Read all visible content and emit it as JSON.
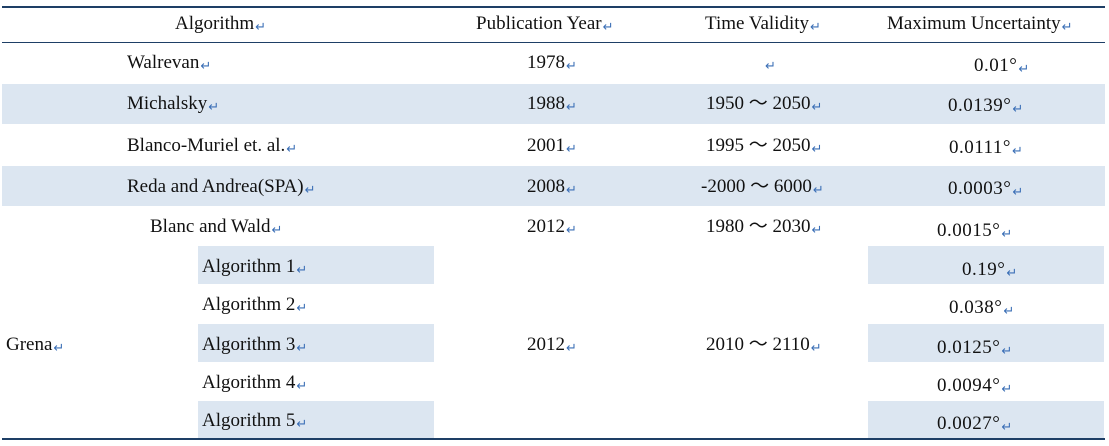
{
  "table": {
    "headers": {
      "algorithm": "Algorithm",
      "year": "Publication Year",
      "validity": "Time Validity",
      "uncertainty": "Maximum Uncertainty"
    },
    "rows": [
      {
        "algorithm": "Walrevan",
        "year": "1978",
        "validity": "",
        "uncertainty": "0.01°"
      },
      {
        "algorithm": "Michalsky",
        "year": "1988",
        "validity": "1950 ～ 2050",
        "uncertainty": "0.0139°"
      },
      {
        "algorithm": "Blanco-Muriel et. al.",
        "year": "2001",
        "validity": "1995 ～ 2050",
        "uncertainty": "0.0111°"
      },
      {
        "algorithm": "Reda and Andrea(SPA)",
        "year": "2008",
        "validity": "-2000 ～ 6000",
        "uncertainty": "0.0003°"
      },
      {
        "algorithm": "Blanc and Wald",
        "year": "2012",
        "validity": "1980 ～ 2030",
        "uncertainty": "0.0015°"
      }
    ],
    "grena": {
      "label": "Grena",
      "year": "2012",
      "validity": "2010 ～ 2110",
      "subs": [
        {
          "name": "Algorithm 1",
          "uncertainty": "0.19°"
        },
        {
          "name": "Algorithm 2",
          "uncertainty": "0.038°"
        },
        {
          "name": "Algorithm 3",
          "uncertainty": "0.0125°"
        },
        {
          "name": "Algorithm 4",
          "uncertainty": "0.0094°"
        },
        {
          "name": "Algorithm 5",
          "uncertainty": "0.0027°"
        }
      ]
    },
    "return_mark": "↵"
  }
}
